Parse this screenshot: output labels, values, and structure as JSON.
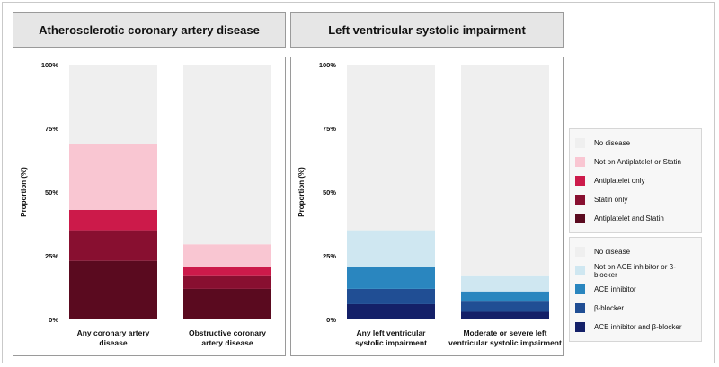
{
  "chart_data": [
    {
      "type": "bar",
      "stacked": true,
      "title": "Atherosclerotic coronary artery disease",
      "ylabel": "Proportion (%)",
      "ylim": [
        0,
        100
      ],
      "yticks": [
        "0%",
        "25%",
        "50%",
        "75%",
        "100%"
      ],
      "categories": [
        "Any coronary artery disease",
        "Obstructive coronary artery disease"
      ],
      "category_lines": [
        [
          "Any coronary artery",
          "disease"
        ],
        [
          "Obstructive coronary",
          "artery disease"
        ]
      ],
      "series": [
        {
          "name": "Antiplatelet and Statin",
          "color": "#5a0a1f",
          "values": [
            23,
            12
          ]
        },
        {
          "name": "Statin only",
          "color": "#880f30",
          "values": [
            12,
            5
          ]
        },
        {
          "name": "Antiplatelet only",
          "color": "#cc1a4a",
          "values": [
            8,
            3.5
          ]
        },
        {
          "name": "Not on Antiplatelet or Statin",
          "color": "#f9c6d2",
          "values": [
            26,
            9
          ]
        },
        {
          "name": "No disease",
          "color": "#efefef",
          "values": [
            31,
            70.5
          ]
        }
      ],
      "grid": false,
      "legend": "right"
    },
    {
      "type": "bar",
      "stacked": true,
      "title": "Left ventricular systolic impairment",
      "ylabel": "Proportion (%)",
      "ylim": [
        0,
        100
      ],
      "yticks": [
        "0%",
        "25%",
        "50%",
        "75%",
        "100%"
      ],
      "categories": [
        "Any left ventricular systolic impairment",
        "Moderate or severe left ventricular systolic impairment"
      ],
      "category_lines": [
        [
          "Any left ventricular",
          "systolic impairment"
        ],
        [
          "Moderate or severe  left",
          "ventricular systolic impairment"
        ]
      ],
      "series": [
        {
          "name": "ACE inhibitor and β-blocker",
          "color": "#142068",
          "values": [
            6,
            3
          ]
        },
        {
          "name": "β-blocker",
          "color": "#204e94",
          "values": [
            6,
            4
          ]
        },
        {
          "name": "ACE inhibitor",
          "color": "#2a86bf",
          "values": [
            8.5,
            4
          ]
        },
        {
          "name": "Not on ACE inhibitor or β-blocker",
          "color": "#cfe7f1",
          "values": [
            14.5,
            6
          ]
        },
        {
          "name": "No disease",
          "color": "#efefef",
          "values": [
            65,
            83
          ]
        }
      ],
      "grid": false,
      "legend": "right"
    }
  ],
  "legends": [
    {
      "items": [
        {
          "label": "No disease",
          "color": "#efefef"
        },
        {
          "label": "Not on Antiplatelet or Statin",
          "color": "#f9c6d2"
        },
        {
          "label": "Antiplatelet only",
          "color": "#cc1a4a"
        },
        {
          "label": "Statin only",
          "color": "#880f30"
        },
        {
          "label": "Antiplatelet and Statin",
          "color": "#5a0a1f"
        }
      ]
    },
    {
      "items": [
        {
          "label": "No disease",
          "color": "#efefef"
        },
        {
          "label": "Not on ACE inhibitor or β-blocker",
          "color": "#cfe7f1"
        },
        {
          "label": "ACE inhibitor",
          "color": "#2a86bf"
        },
        {
          "label": "β-blocker",
          "color": "#204e94"
        },
        {
          "label": "ACE inhibitor and β-blocker",
          "color": "#142068"
        }
      ]
    }
  ]
}
